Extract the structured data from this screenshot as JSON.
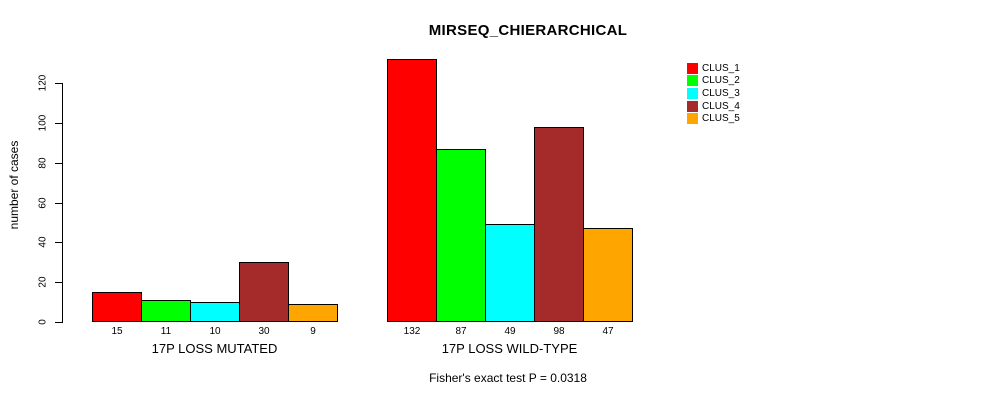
{
  "chart_data": {
    "type": "bar",
    "title": "MIRSEQ_CHIERARCHICAL",
    "ylabel": "number of cases",
    "xlabel": "",
    "footnote": "Fisher's exact test P = 0.0318",
    "categories": [
      "17P LOSS MUTATED",
      "17P LOSS WILD-TYPE"
    ],
    "series": [
      {
        "name": "CLUS_1",
        "color": "#FF0000",
        "values": [
          15,
          132
        ]
      },
      {
        "name": "CLUS_2",
        "color": "#00FF00",
        "values": [
          11,
          87
        ]
      },
      {
        "name": "CLUS_3",
        "color": "#00FFFF",
        "values": [
          10,
          49
        ]
      },
      {
        "name": "CLUS_4",
        "color": "#A52A2A",
        "values": [
          30,
          98
        ]
      },
      {
        "name": "CLUS_5",
        "color": "#FFA500",
        "values": [
          9,
          47
        ]
      }
    ],
    "yticks": [
      0,
      20,
      40,
      60,
      80,
      100,
      120
    ],
    "axis_ylim": [
      0,
      120
    ],
    "show_bar_values": true,
    "grid": false,
    "legend_position": "top-right"
  }
}
